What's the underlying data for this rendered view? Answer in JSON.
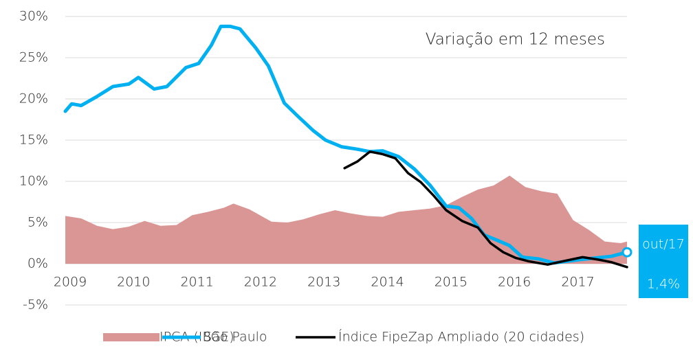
{
  "chart_data": {
    "type": "line",
    "annotation": "Variação em 12 meses",
    "callout_date": "out/17",
    "xlim": [
      2009,
      2017.85
    ],
    "xticks": [
      2009,
      2010,
      2011,
      2012,
      2013,
      2014,
      2015,
      2016,
      2017
    ],
    "ylim": [
      -5,
      30
    ],
    "yticks": [
      {
        "value": -5,
        "label": "-5%"
      },
      {
        "value": 0,
        "label": "0%"
      },
      {
        "value": 5,
        "label": "5%"
      },
      {
        "value": 10,
        "label": "10%"
      },
      {
        "value": 15,
        "label": "15%"
      },
      {
        "value": 20,
        "label": "20%"
      },
      {
        "value": 25,
        "label": "25%"
      },
      {
        "value": 30,
        "label": "30%"
      }
    ],
    "grid": true,
    "legend": "bottom",
    "series": [
      {
        "name": "IPCA (IBGE)",
        "kind": "area",
        "color": "#d99694",
        "x": [
          2009,
          2009.25,
          2009.5,
          2009.75,
          2010,
          2010.25,
          2010.5,
          2010.75,
          2011,
          2011.25,
          2011.5,
          2011.65,
          2011.9,
          2012.25,
          2012.5,
          2012.75,
          2013,
          2013.25,
          2013.5,
          2013.75,
          2014,
          2014.25,
          2014.5,
          2014.75,
          2015,
          2015.25,
          2015.5,
          2015.75,
          2016,
          2016.25,
          2016.5,
          2016.75,
          2017,
          2017.25,
          2017.5,
          2017.75,
          2017.85
        ],
        "values": [
          5.8,
          5.5,
          4.6,
          4.2,
          4.5,
          5.2,
          4.6,
          4.7,
          5.9,
          6.3,
          6.8,
          7.3,
          6.6,
          5.1,
          5.0,
          5.4,
          6.0,
          6.5,
          6.1,
          5.8,
          5.7,
          6.3,
          6.5,
          6.7,
          7.1,
          8.1,
          9.0,
          9.5,
          10.7,
          9.3,
          8.8,
          8.5,
          5.3,
          4.1,
          2.7,
          2.5,
          2.7
        ]
      },
      {
        "name": "São Paulo",
        "kind": "line",
        "color": "#00b0f0",
        "x": [
          2009,
          2009.1,
          2009.25,
          2009.5,
          2009.75,
          2010,
          2010.15,
          2010.4,
          2010.6,
          2010.9,
          2011.1,
          2011.3,
          2011.45,
          2011.6,
          2011.75,
          2012,
          2012.2,
          2012.45,
          2012.65,
          2012.9,
          2013.1,
          2013.35,
          2013.6,
          2013.8,
          2014,
          2014.25,
          2014.5,
          2014.75,
          2015,
          2015.2,
          2015.4,
          2015.6,
          2015.85,
          2016,
          2016.2,
          2016.45,
          2016.7,
          2016.9,
          2017.1,
          2017.35,
          2017.6,
          2017.85
        ],
        "values": [
          18.5,
          19.4,
          19.2,
          20.3,
          21.5,
          21.8,
          22.6,
          21.2,
          21.5,
          23.8,
          24.3,
          26.5,
          28.8,
          28.8,
          28.5,
          26.2,
          24.0,
          19.5,
          18.0,
          16.2,
          15.0,
          14.2,
          13.9,
          13.6,
          13.7,
          13.0,
          11.5,
          9.5,
          7.0,
          6.8,
          5.5,
          3.5,
          2.7,
          2.2,
          0.8,
          0.6,
          0.1,
          0.3,
          0.5,
          0.7,
          0.9,
          1.4
        ],
        "value_labels": [
          null,
          null,
          null,
          null,
          null,
          null,
          null,
          null,
          null,
          null,
          null,
          null,
          null,
          null,
          null,
          null,
          null,
          null,
          null,
          null,
          null,
          null,
          null,
          null,
          null,
          null,
          null,
          null,
          null,
          null,
          null,
          null,
          null,
          null,
          null,
          null,
          null,
          null,
          null,
          null,
          null,
          "1,4%"
        ]
      },
      {
        "name": "Índice FipeZap Ampliado (20 cidades)",
        "kind": "line",
        "color": "#000000",
        "x": [
          2013.4,
          2013.6,
          2013.8,
          2014,
          2014.2,
          2014.4,
          2014.6,
          2014.8,
          2015,
          2015.25,
          2015.5,
          2015.7,
          2015.9,
          2016.1,
          2016.3,
          2016.6,
          2016.9,
          2017.15,
          2017.4,
          2017.6,
          2017.85
        ],
        "values": [
          11.6,
          12.4,
          13.6,
          13.3,
          12.8,
          11.0,
          9.9,
          8.3,
          6.5,
          5.2,
          4.4,
          2.5,
          1.4,
          0.7,
          0.3,
          -0.1,
          0.4,
          0.8,
          0.5,
          0.2,
          -0.4
        ]
      }
    ]
  }
}
